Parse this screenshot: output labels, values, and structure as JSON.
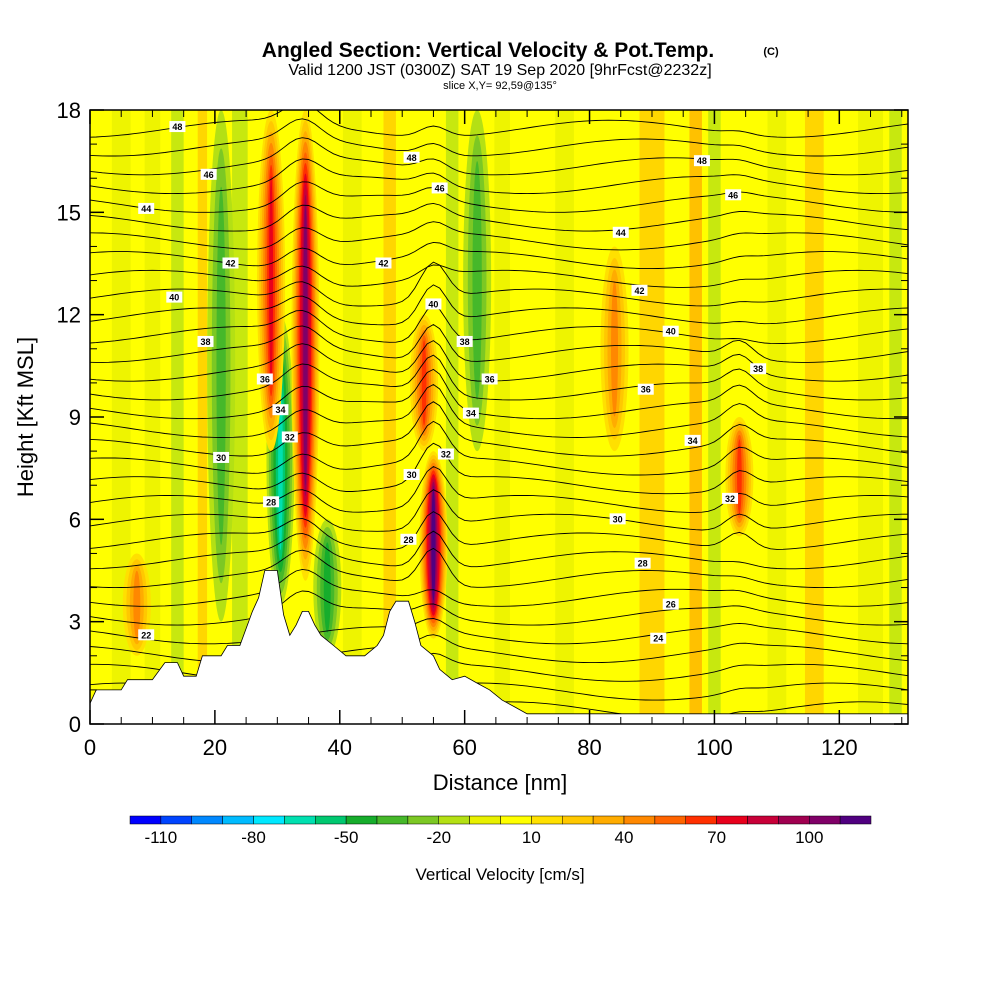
{
  "title": "Angled Section: Vertical Velocity & Pot.Temp.",
  "title_suffix": "(C)",
  "subtitle": "Valid 1200 JST (0300Z) SAT 19 Sep 2020 [9hrFcst@2232z]",
  "slice_info": "slice X,Y= 92,59@135°",
  "chart_data": {
    "type": "heatmap",
    "xlabel": "Distance [nm]",
    "ylabel": "Height [Kft MSL]",
    "xlim": [
      0,
      131
    ],
    "ylim": [
      0,
      18
    ],
    "x_ticks": [
      0,
      20,
      40,
      60,
      80,
      100,
      120
    ],
    "y_ticks": [
      0,
      3,
      6,
      9,
      12,
      15,
      18
    ],
    "colorbar": {
      "label": "Vertical Velocity [cm/s]",
      "tick_labels": [
        "-110",
        "-80",
        "-50",
        "-20",
        "10",
        "40",
        "70",
        "100"
      ],
      "colors": [
        "#0000ff",
        "#0044ff",
        "#0088ff",
        "#00bbff",
        "#00e8ff",
        "#00e0b0",
        "#00c870",
        "#16ad2c",
        "#46b82a",
        "#7cc824",
        "#b4e014",
        "#e8f000",
        "#ffff00",
        "#ffe000",
        "#ffc800",
        "#ffac00",
        "#ff8800",
        "#ff6400",
        "#ff3000",
        "#e8001c",
        "#c80038",
        "#a00050",
        "#800068",
        "#500080"
      ]
    },
    "background_fill": "#ffff00",
    "updrafts": [
      {
        "x": 34.5,
        "y0": 4.2,
        "y1": 18,
        "strength": 100
      },
      {
        "x": 29.0,
        "y0": 8,
        "y1": 18,
        "strength": 70
      },
      {
        "x": 55.0,
        "y0": 2.5,
        "y1": 8,
        "strength": 110
      },
      {
        "x": 53.5,
        "y0": 8,
        "y1": 12,
        "strength": 60
      },
      {
        "x": 104.0,
        "y0": 5.5,
        "y1": 9,
        "strength": 60
      },
      {
        "x": 84.0,
        "y0": 8,
        "y1": 14,
        "strength": 40
      },
      {
        "x": 7.5,
        "y0": 2,
        "y1": 5,
        "strength": 40
      }
    ],
    "downdrafts": [
      {
        "x": 30.5,
        "y0": 3.5,
        "y1": 12,
        "strength": -60
      },
      {
        "x": 21.0,
        "y0": 3,
        "y1": 18,
        "strength": -30
      },
      {
        "x": 62.0,
        "y0": 8,
        "y1": 18,
        "strength": -30
      },
      {
        "x": 38.0,
        "y0": 2,
        "y1": 6,
        "strength": -40
      }
    ],
    "terrain": [
      [
        0,
        0.6
      ],
      [
        1,
        1
      ],
      [
        5,
        1
      ],
      [
        6,
        1.3
      ],
      [
        10,
        1.3
      ],
      [
        12,
        1.8
      ],
      [
        14,
        1.8
      ],
      [
        15,
        1.4
      ],
      [
        17,
        1.4
      ],
      [
        18,
        2
      ],
      [
        21,
        2
      ],
      [
        22,
        2.3
      ],
      [
        24,
        2.3
      ],
      [
        26,
        3.3
      ],
      [
        27,
        3.7
      ],
      [
        28,
        4.5
      ],
      [
        30,
        4.5
      ],
      [
        31,
        3.2
      ],
      [
        32,
        2.6
      ],
      [
        33,
        2.9
      ],
      [
        34,
        3.3
      ],
      [
        35,
        3.3
      ],
      [
        36,
        2.9
      ],
      [
        37,
        2.6
      ],
      [
        39,
        2.3
      ],
      [
        41,
        2
      ],
      [
        44,
        2
      ],
      [
        46,
        2.3
      ],
      [
        47,
        2.6
      ],
      [
        48,
        3.3
      ],
      [
        49,
        3.6
      ],
      [
        51,
        3.6
      ],
      [
        52,
        3
      ],
      [
        53,
        2.3
      ],
      [
        55,
        2
      ],
      [
        56,
        1.6
      ],
      [
        58,
        1.3
      ],
      [
        60,
        1.4
      ],
      [
        62,
        1.2
      ],
      [
        64,
        1
      ],
      [
        66,
        0.7
      ],
      [
        68,
        0.5
      ],
      [
        70,
        0.3
      ],
      [
        131,
        0.3
      ]
    ],
    "contour_labels": [
      {
        "x": 14,
        "y": 17.5,
        "text": "48"
      },
      {
        "x": 19,
        "y": 16.1,
        "text": "46"
      },
      {
        "x": 9,
        "y": 15.1,
        "text": "44"
      },
      {
        "x": 22.5,
        "y": 13.5,
        "text": "42"
      },
      {
        "x": 13.5,
        "y": 12.5,
        "text": "40"
      },
      {
        "x": 18.5,
        "y": 11.2,
        "text": "38"
      },
      {
        "x": 28,
        "y": 10.1,
        "text": "36"
      },
      {
        "x": 30.5,
        "y": 9.2,
        "text": "34"
      },
      {
        "x": 32,
        "y": 8.4,
        "text": "32"
      },
      {
        "x": 21,
        "y": 7.8,
        "text": "30"
      },
      {
        "x": 29,
        "y": 6.5,
        "text": "28"
      },
      {
        "x": 9,
        "y": 2.6,
        "text": "22"
      },
      {
        "x": 51.5,
        "y": 16.6,
        "text": "48"
      },
      {
        "x": 56,
        "y": 15.7,
        "text": "46"
      },
      {
        "x": 46,
        "y": 15
      },
      {
        "x": 47,
        "y": 13.5,
        "text": "42"
      },
      {
        "x": 55,
        "y": 12.3,
        "text": "40"
      },
      {
        "x": 60,
        "y": 11.2,
        "text": "38"
      },
      {
        "x": 64,
        "y": 10.1,
        "text": "36"
      },
      {
        "x": 61,
        "y": 9.1,
        "text": "34"
      },
      {
        "x": 57,
        "y": 7.9,
        "text": "32"
      },
      {
        "x": 51.5,
        "y": 7.3,
        "text": "30"
      },
      {
        "x": 51,
        "y": 5.4,
        "text": "28"
      },
      {
        "x": 98,
        "y": 16.5,
        "text": "48"
      },
      {
        "x": 103,
        "y": 15.5,
        "text": "46"
      },
      {
        "x": 85,
        "y": 14.4,
        "text": "44"
      },
      {
        "x": 88,
        "y": 12.7,
        "text": "42"
      },
      {
        "x": 93,
        "y": 11.5,
        "text": "40"
      },
      {
        "x": 107,
        "y": 10.4,
        "text": "38"
      },
      {
        "x": 89,
        "y": 9.8,
        "text": "36"
      },
      {
        "x": 96.5,
        "y": 8.3,
        "text": "34"
      },
      {
        "x": 102.5,
        "y": 6.6,
        "text": "32"
      },
      {
        "x": 84.5,
        "y": 6,
        "text": "30"
      },
      {
        "x": 88.5,
        "y": 4.7,
        "text": "28"
      },
      {
        "x": 93,
        "y": 3.5,
        "text": "26"
      },
      {
        "x": 91,
        "y": 2.5,
        "text": "24"
      }
    ]
  }
}
